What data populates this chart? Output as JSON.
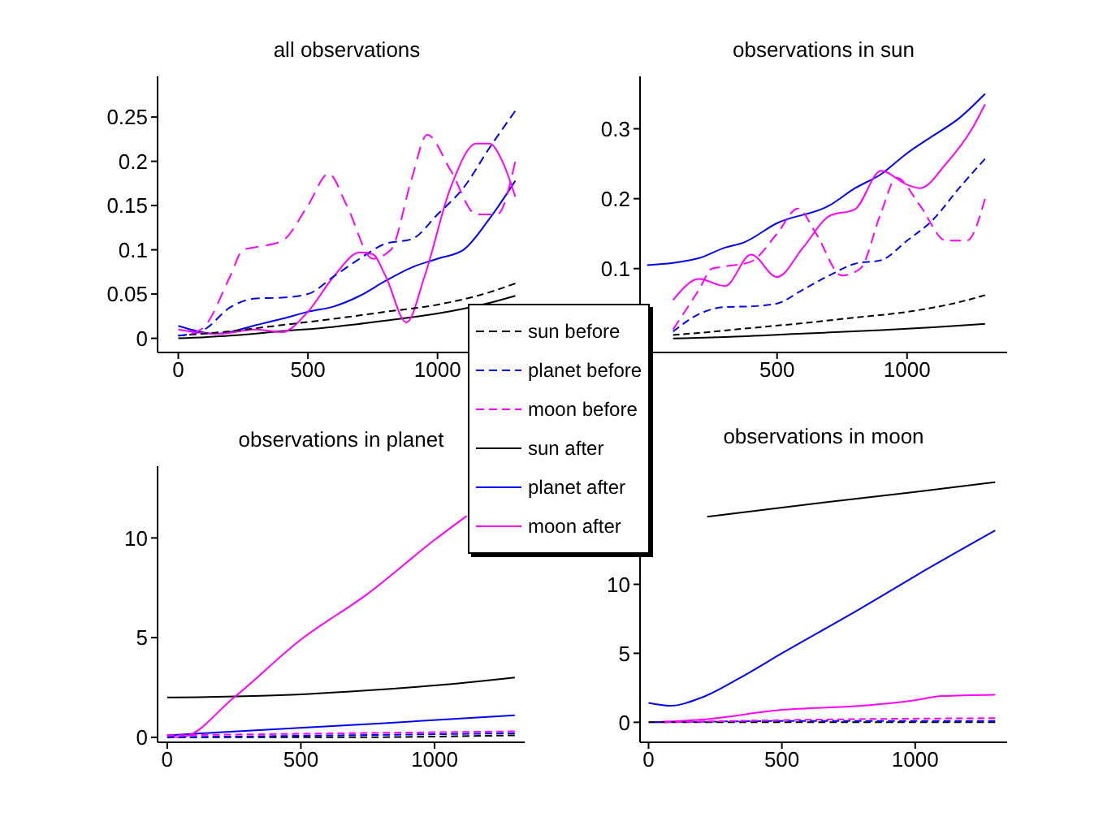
{
  "chart_data": [
    {
      "type": "line",
      "title": "all observations",
      "legend": "bottom right",
      "xlim": [
        -80,
        1380
      ],
      "xticks": [
        0,
        500,
        1000
      ],
      "ylim": [
        -0.016,
        0.296
      ],
      "yticks": [
        0,
        0.05,
        0.1,
        0.15,
        0.2,
        0.25
      ],
      "series": [
        {
          "name": "sun before",
          "color": "#000000",
          "line_style": "dashed",
          "x": [
            0,
            200,
            400,
            600,
            800,
            1000,
            1200,
            1300
          ],
          "values": [
            0.003,
            0.008,
            0.015,
            0.022,
            0.03,
            0.038,
            0.052,
            0.062
          ]
        },
        {
          "name": "planet before",
          "color": "#0000ff",
          "line_style": "dashed",
          "x": [
            0,
            100,
            200,
            300,
            400,
            500,
            600,
            700,
            800,
            900,
            1000,
            1100,
            1200,
            1300
          ],
          "values": [
            0.003,
            0.01,
            0.035,
            0.045,
            0.046,
            0.05,
            0.07,
            0.09,
            0.107,
            0.112,
            0.14,
            0.17,
            0.215,
            0.257
          ]
        },
        {
          "name": "moon before",
          "color": "#ff00ff",
          "line_style": "dashed",
          "x": [
            50,
            100,
            200,
            250,
            300,
            400,
            500,
            580,
            650,
            750,
            820,
            900,
            960,
            1050,
            1150,
            1230,
            1300
          ],
          "values": [
            0.005,
            0.013,
            0.07,
            0.1,
            0.103,
            0.11,
            0.15,
            0.186,
            0.15,
            0.09,
            0.1,
            0.18,
            0.23,
            0.19,
            0.14,
            0.14,
            0.2
          ]
        },
        {
          "name": "sun after",
          "color": "#000000",
          "line_style": "solid",
          "x": [
            0,
            200,
            400,
            600,
            800,
            1000,
            1200,
            1300
          ],
          "values": [
            0,
            0.003,
            0.008,
            0.013,
            0.02,
            0.028,
            0.04,
            0.048
          ]
        },
        {
          "name": "planet after",
          "color": "#0000ff",
          "line_style": "solid",
          "x": [
            0,
            150,
            300,
            400,
            500,
            600,
            700,
            800,
            900,
            1000,
            1100,
            1200,
            1300
          ],
          "values": [
            0.014,
            0.005,
            0.015,
            0.022,
            0.03,
            0.036,
            0.048,
            0.065,
            0.08,
            0.09,
            0.1,
            0.135,
            0.178
          ]
        },
        {
          "name": "moon after",
          "color": "#ff00ff",
          "line_style": "solid",
          "x": [
            0,
            150,
            300,
            400,
            500,
            600,
            700,
            750,
            800,
            880,
            950,
            1050,
            1150,
            1200,
            1250,
            1300
          ],
          "values": [
            0.01,
            0.005,
            0.01,
            0.007,
            0.03,
            0.07,
            0.097,
            0.095,
            0.07,
            0.018,
            0.07,
            0.17,
            0.22,
            0.22,
            0.2,
            0.16
          ]
        }
      ]
    },
    {
      "type": "line",
      "title": "observations in sun",
      "xlim": [
        -27,
        1385
      ],
      "xticks": [
        500,
        1000
      ],
      "ylim": [
        -0.02,
        0.375
      ],
      "yticks": [
        0.1,
        0.2,
        0.3
      ],
      "series": [
        {
          "color": "#000000",
          "line_style": "dashed",
          "x": [
            100,
            200,
            400,
            600,
            800,
            1000,
            1200,
            1300
          ],
          "values": [
            0.005,
            0.008,
            0.015,
            0.022,
            0.03,
            0.038,
            0.052,
            0.062
          ]
        },
        {
          "color": "#0000ff",
          "line_style": "dashed",
          "x": [
            100,
            200,
            300,
            400,
            500,
            600,
            700,
            800,
            900,
            1000,
            1100,
            1200,
            1300
          ],
          "values": [
            0.01,
            0.035,
            0.045,
            0.046,
            0.05,
            0.07,
            0.09,
            0.107,
            0.112,
            0.14,
            0.17,
            0.215,
            0.257
          ]
        },
        {
          "color": "#ff00ff",
          "line_style": "dashed",
          "x": [
            100,
            200,
            250,
            300,
            400,
            500,
            580,
            650,
            750,
            820,
            900,
            960,
            1050,
            1150,
            1230,
            1300
          ],
          "values": [
            0.013,
            0.07,
            0.1,
            0.103,
            0.11,
            0.15,
            0.186,
            0.15,
            0.09,
            0.1,
            0.18,
            0.23,
            0.19,
            0.14,
            0.14,
            0.2
          ]
        },
        {
          "color": "#000000",
          "line_style": "solid",
          "x": [
            100,
            300,
            600,
            900,
            1100,
            1300
          ],
          "values": [
            0,
            0.002,
            0.007,
            0.012,
            0.016,
            0.021
          ]
        },
        {
          "color": "#0000ff",
          "line_style": "solid",
          "x": [
            0,
            100,
            200,
            300,
            370,
            500,
            700,
            800,
            900,
            1000,
            1100,
            1200,
            1300
          ],
          "values": [
            0.105,
            0.108,
            0.115,
            0.13,
            0.137,
            0.165,
            0.19,
            0.215,
            0.235,
            0.265,
            0.29,
            0.315,
            0.35
          ]
        },
        {
          "color": "#ff00ff",
          "line_style": "solid",
          "x": [
            100,
            200,
            300,
            400,
            500,
            600,
            700,
            800,
            900,
            1000,
            1050,
            1150,
            1250,
            1300
          ],
          "values": [
            0.055,
            0.085,
            0.075,
            0.12,
            0.088,
            0.13,
            0.175,
            0.185,
            0.24,
            0.22,
            0.215,
            0.25,
            0.3,
            0.335
          ]
        }
      ]
    },
    {
      "type": "line",
      "title": "observations in planet",
      "xlim": [
        -36,
        1337
      ],
      "xticks": [
        0,
        500,
        1000
      ],
      "ylim": [
        -0.25,
        13.6
      ],
      "yticks": [
        0,
        5,
        10
      ],
      "series": [
        {
          "color": "#000000",
          "line_style": "dashed",
          "x": [
            0,
            650,
            1300
          ],
          "values": [
            0,
            0,
            0.1
          ]
        },
        {
          "color": "#0000ff",
          "line_style": "dashed",
          "x": [
            0,
            650,
            1300
          ],
          "values": [
            0,
            0.1,
            0.2
          ]
        },
        {
          "color": "#ff00ff",
          "line_style": "dashed",
          "x": [
            0,
            650,
            1300
          ],
          "values": [
            0.1,
            0.2,
            0.3
          ]
        },
        {
          "color": "#000000",
          "line_style": "solid",
          "x": [
            0,
            400,
            800,
            1000,
            1300
          ],
          "values": [
            2,
            2.1,
            2.4,
            2.6,
            3
          ]
        },
        {
          "color": "#0000ff",
          "line_style": "solid",
          "x": [
            0,
            400,
            800,
            1300
          ],
          "values": [
            0.1,
            0.4,
            0.7,
            1.1
          ]
        },
        {
          "color": "#ff00ff",
          "line_style": "solid",
          "x": [
            0,
            50,
            250,
            500,
            750,
            1000,
            1120
          ],
          "values": [
            0.1,
            0,
            2,
            4.9,
            7.2,
            9.9,
            11.1
          ]
        }
      ]
    },
    {
      "type": "line",
      "title": "observations in moon",
      "xlim": [
        -32,
        1345
      ],
      "xticks": [
        0,
        500,
        1000
      ],
      "ylim": [
        -1.45,
        18.8
      ],
      "yticks": [
        0,
        5,
        10
      ],
      "series": [
        {
          "color": "#000000",
          "line_style": "dashed",
          "x": [
            0,
            650,
            1300
          ],
          "values": [
            0,
            0,
            0
          ]
        },
        {
          "color": "#0000ff",
          "line_style": "dashed",
          "x": [
            20,
            650,
            1300
          ],
          "values": [
            0,
            0.1,
            0.1
          ]
        },
        {
          "color": "#ff00ff",
          "line_style": "dashed",
          "x": [
            60,
            650,
            1300
          ],
          "values": [
            0,
            0.2,
            0.3
          ]
        },
        {
          "color": "#000000",
          "line_style": "solid",
          "x": [
            220,
            600,
            1000,
            1300
          ],
          "values": [
            14.9,
            15.8,
            16.7,
            17.4
          ]
        },
        {
          "color": "#0000ff",
          "line_style": "solid",
          "x": [
            0,
            80,
            200,
            350,
            500,
            800,
            1000,
            1300
          ],
          "values": [
            1.4,
            1.2,
            1.8,
            3.3,
            5,
            8.3,
            10.6,
            13.9
          ]
        },
        {
          "color": "#ff00ff",
          "line_style": "solid",
          "x": [
            0,
            200,
            500,
            800,
            1000,
            1100,
            1300
          ],
          "values": [
            0,
            0.2,
            0.9,
            1.2,
            1.6,
            1.9,
            2
          ]
        }
      ]
    }
  ]
}
